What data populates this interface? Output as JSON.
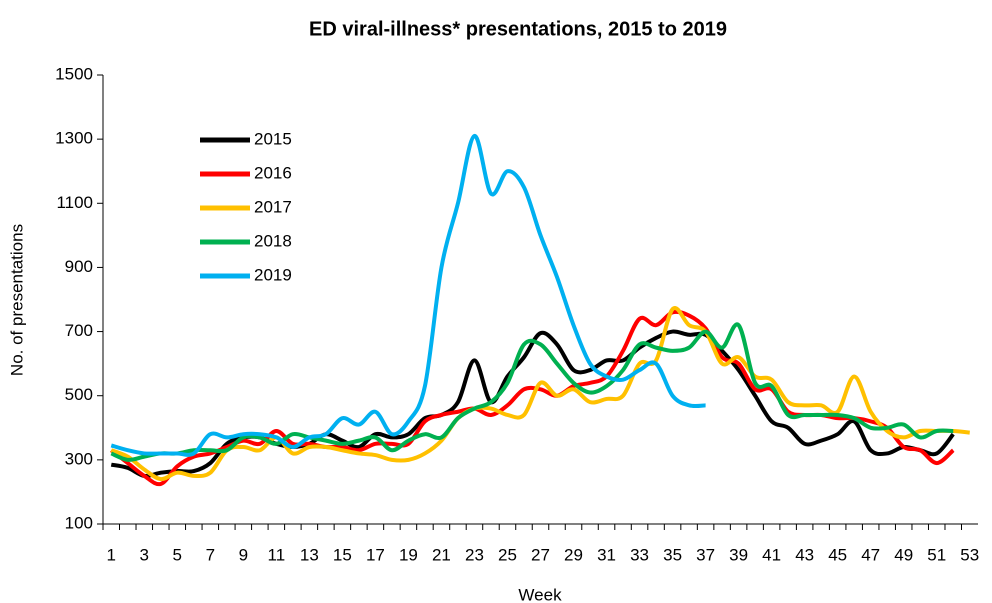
{
  "chart_data": {
    "type": "line",
    "title": "ED viral-illness* presentations, 2015 to 2019",
    "x_label": "Week",
    "y_label": "No. of presentations",
    "categories": [
      "1",
      null,
      "3",
      null,
      "5",
      null,
      "7",
      null,
      "9",
      null,
      "11",
      null,
      "13",
      null,
      "15",
      null,
      "17",
      null,
      "19",
      null,
      "21",
      null,
      "23",
      null,
      "25",
      null,
      "27",
      null,
      "29",
      null,
      "31",
      null,
      "33",
      null,
      "35",
      null,
      "37",
      null,
      "39",
      null,
      "41",
      null,
      "43",
      null,
      "45",
      null,
      "47",
      null,
      "49",
      null,
      "51",
      null,
      "53"
    ],
    "ylim": [
      100,
      1500
    ],
    "yticks": [
      100,
      300,
      500,
      700,
      900,
      1100,
      1300,
      1500
    ],
    "legend": "top-left",
    "series": [
      {
        "name": "2015",
        "color": "#000000",
        "values": [
          285,
          275,
          250,
          260,
          265,
          265,
          290,
          350,
          370,
          370,
          350,
          340,
          350,
          380,
          360,
          340,
          380,
          370,
          380,
          430,
          440,
          480,
          610,
          480,
          560,
          620,
          695,
          660,
          580,
          580,
          610,
          610,
          650,
          680,
          700,
          690,
          690,
          640,
          580,
          500,
          420,
          400,
          350,
          360,
          380,
          420,
          330,
          320,
          340,
          330,
          320,
          380,
          null
        ]
      },
      {
        "name": "2016",
        "color": "#ff0000",
        "values": [
          330,
          290,
          250,
          225,
          280,
          310,
          320,
          340,
          360,
          350,
          390,
          350,
          350,
          340,
          340,
          330,
          350,
          350,
          350,
          420,
          440,
          450,
          460,
          440,
          470,
          520,
          520,
          500,
          530,
          540,
          560,
          640,
          740,
          720,
          760,
          750,
          710,
          620,
          600,
          520,
          520,
          450,
          440,
          440,
          430,
          430,
          420,
          400,
          340,
          330,
          290,
          330,
          null
        ]
      },
      {
        "name": "2017",
        "color": "#ffc000",
        "values": [
          330,
          310,
          270,
          240,
          260,
          250,
          260,
          330,
          340,
          330,
          370,
          320,
          340,
          340,
          330,
          320,
          315,
          300,
          300,
          320,
          360,
          430,
          460,
          460,
          440,
          440,
          540,
          500,
          520,
          480,
          490,
          500,
          600,
          610,
          770,
          720,
          700,
          600,
          620,
          560,
          550,
          480,
          470,
          470,
          450,
          560,
          450,
          390,
          370,
          390,
          390,
          390,
          385
        ]
      },
      {
        "name": "2018",
        "color": "#00b050",
        "values": [
          320,
          300,
          310,
          320,
          320,
          330,
          330,
          330,
          370,
          370,
          350,
          380,
          370,
          360,
          350,
          360,
          370,
          330,
          360,
          380,
          370,
          430,
          460,
          480,
          540,
          660,
          660,
          600,
          540,
          510,
          530,
          580,
          660,
          650,
          640,
          650,
          700,
          650,
          720,
          540,
          530,
          440,
          440,
          440,
          440,
          430,
          400,
          400,
          410,
          370,
          390,
          390,
          null
        ]
      },
      {
        "name": "2019",
        "color": "#00b0f0",
        "values": [
          345,
          330,
          320,
          320,
          320,
          320,
          380,
          370,
          380,
          380,
          370,
          340,
          370,
          380,
          430,
          410,
          450,
          380,
          420,
          530,
          900,
          1100,
          1310,
          1130,
          1200,
          1150,
          1000,
          870,
          720,
          600,
          560,
          550,
          580,
          600,
          500,
          470,
          470,
          null,
          null,
          null,
          null,
          null,
          null,
          null,
          null,
          null,
          null,
          null,
          null,
          null,
          null,
          null,
          null
        ]
      }
    ]
  }
}
